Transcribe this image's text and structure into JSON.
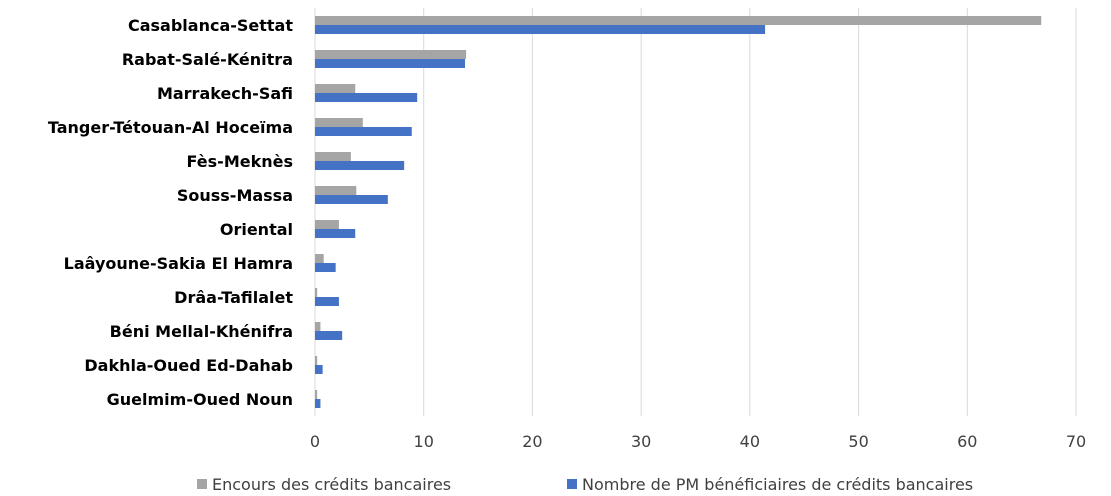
{
  "chart_data": {
    "type": "bar",
    "orientation": "horizontal",
    "categories": [
      "Casablanca-Settat",
      "Rabat-Salé-Kénitra",
      "Marrakech-Safi",
      "Tanger-Tétouan-Al Hoceïma",
      "Fès-Meknès",
      "Souss-Massa",
      "Oriental",
      "Laâyoune-Sakia El Hamra",
      "Drâa-Tafilalet",
      "Béni Mellal-Khénifra",
      "Dakhla-Oued Ed-Dahab",
      "Guelmim-Oued Noun"
    ],
    "series": [
      {
        "name": "Encours des crédits bancaires",
        "color": "#a5a5a5",
        "values": [
          66.8,
          13.9,
          3.7,
          4.4,
          3.3,
          3.8,
          2.2,
          0.8,
          0.2,
          0.5,
          0.2,
          0.2
        ]
      },
      {
        "name": "Nombre de PM bénéficiaires de crédits bancaires",
        "color": "#4472c4",
        "values": [
          41.4,
          13.8,
          9.4,
          8.9,
          8.2,
          6.7,
          3.7,
          1.9,
          2.2,
          2.5,
          0.7,
          0.5
        ]
      }
    ],
    "xlim": [
      0,
      70
    ],
    "xticks": [
      0,
      10,
      20,
      30,
      40,
      50,
      60,
      70
    ],
    "grid": true,
    "legend_position": "bottom",
    "title": "",
    "xlabel": "",
    "ylabel": ""
  }
}
